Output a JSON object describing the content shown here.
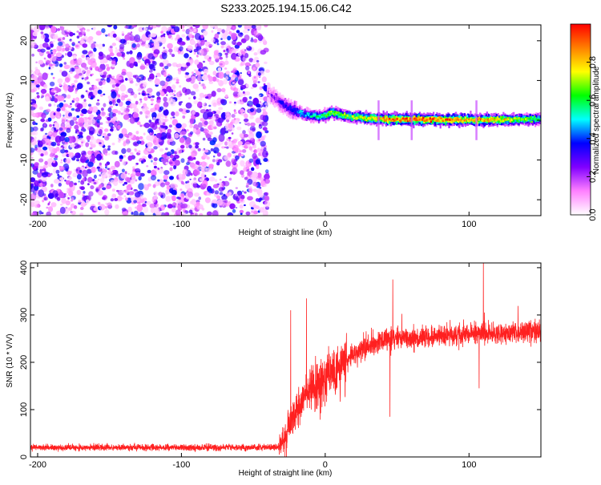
{
  "title": "S233.2025.194.15.06.C42",
  "chart_data": [
    {
      "type": "heatmap",
      "xlabel": "Height of straight line (km)",
      "ylabel": "Frequency (Hz)",
      "xlim": [
        -205,
        150
      ],
      "ylim": [
        -24,
        24
      ],
      "x_ticks": [
        -200,
        -100,
        0,
        100
      ],
      "y_ticks": [
        -20,
        -10,
        0,
        10,
        20
      ],
      "noise_region_x": [
        -205,
        -40
      ],
      "ridge": {
        "x": [
          -40,
          -35,
          -30,
          -25,
          -20,
          -15,
          -10,
          -5,
          0,
          5,
          10,
          20,
          30,
          40,
          60,
          80,
          100,
          120,
          150
        ],
        "frequency": [
          7,
          5.5,
          4,
          3,
          2.2,
          1.6,
          1.2,
          1.0,
          1.2,
          2.0,
          1.4,
          0.8,
          0.5,
          0.3,
          0.2,
          0.1,
          0.1,
          0.1,
          0.3
        ],
        "amplitude": [
          0.15,
          0.25,
          0.3,
          0.35,
          0.4,
          0.45,
          0.5,
          0.55,
          0.6,
          0.7,
          0.65,
          0.7,
          0.75,
          0.85,
          0.9,
          0.9,
          0.85,
          0.8,
          0.55
        ]
      },
      "colorbar": {
        "label": "Normalized spectral amplitude",
        "range": [
          0,
          1
        ],
        "ticks": [
          "0.0",
          "0.2",
          "0.4",
          "0.6",
          "0.8"
        ],
        "colors": [
          "#ffffff",
          "#ff80ff",
          "#8000ff",
          "#0000ff",
          "#00ffff",
          "#00ff00",
          "#ffff00",
          "#ff8000",
          "#ff0000"
        ]
      }
    },
    {
      "type": "line",
      "xlabel": "Height of straight line (km)",
      "ylabel": "SNR (10 * V/V)",
      "xlim": [
        -205,
        150
      ],
      "ylim": [
        0,
        410
      ],
      "x_ticks": [
        -200,
        -100,
        0,
        100
      ],
      "y_ticks": [
        0,
        100,
        200,
        300,
        400
      ],
      "color": "#ff2020",
      "series": [
        {
          "x": [
            -205,
            -40,
            -32,
            -28,
            -25,
            -20,
            -15,
            -10,
            -5,
            0,
            5,
            10,
            15,
            20,
            30,
            40,
            50,
            60,
            80,
            100,
            120,
            150
          ],
          "values": [
            20,
            20,
            22,
            40,
            70,
            100,
            125,
            145,
            155,
            165,
            180,
            190,
            200,
            215,
            235,
            245,
            250,
            250,
            255,
            260,
            260,
            265
          ]
        }
      ],
      "spikes": [
        {
          "x": 110,
          "value": 410
        },
        {
          "x": 47,
          "value": 375
        },
        {
          "x": -13,
          "value": 335
        },
        {
          "x": -24,
          "value": 310
        },
        {
          "x": 45,
          "value": 85
        },
        {
          "x": 107,
          "value": 145
        }
      ]
    }
  ]
}
